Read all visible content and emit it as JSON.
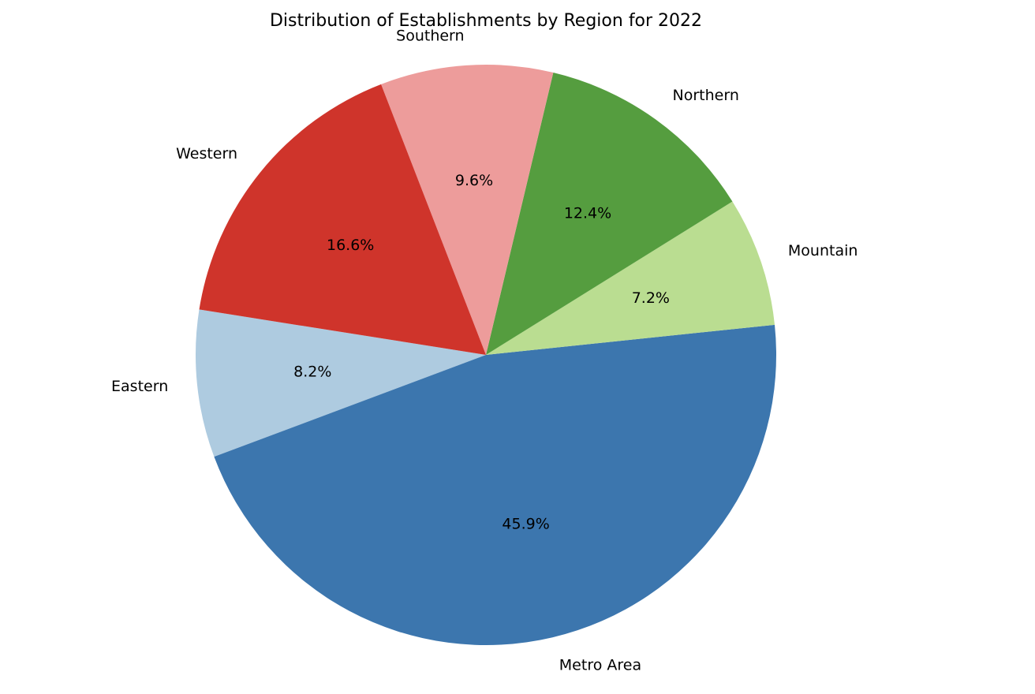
{
  "chart_data": {
    "type": "pie",
    "title": "Distribution of Establishments by Region for 2022",
    "start_angle_deg": 171,
    "direction": "counterclockwise",
    "slices": [
      {
        "label": "Eastern",
        "value": 8.2,
        "pct_label": "8.2%",
        "color": "#aecbe0"
      },
      {
        "label": "Metro Area",
        "value": 45.9,
        "pct_label": "45.9%",
        "color": "#3c76ae"
      },
      {
        "label": "Mountain",
        "value": 7.2,
        "pct_label": "7.2%",
        "color": "#badd91"
      },
      {
        "label": "Northern",
        "value": 12.4,
        "pct_label": "12.4%",
        "color": "#559d3f"
      },
      {
        "label": "Southern",
        "value": 9.6,
        "pct_label": "9.6%",
        "color": "#ed9c9b"
      },
      {
        "label": "Western",
        "value": 16.6,
        "pct_label": "16.6%",
        "color": "#cf342b"
      }
    ]
  }
}
